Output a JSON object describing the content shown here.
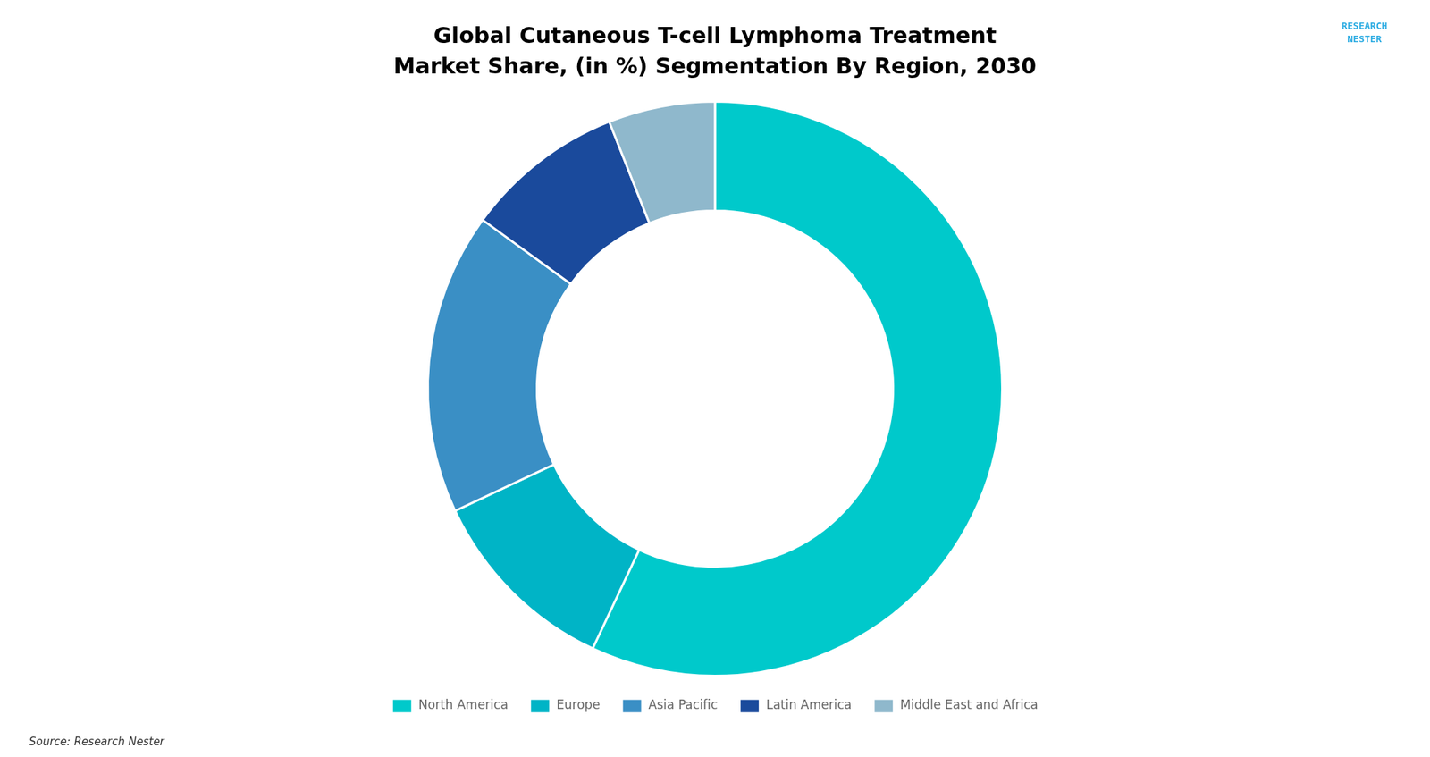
{
  "chart_data": {
    "type": "doughnut",
    "title": "Global Cutaneous T-cell Lymphoma Treatment",
    "subtitle": "Market Share, (in %) Segmentation By Region, 2030",
    "categories": [
      "North America",
      "Europe",
      "Asia Pacific",
      "Latin America",
      "Middle East and Africa"
    ],
    "values": [
      57,
      11,
      17,
      9,
      6
    ],
    "colors": [
      "#00C9CB",
      "#00B4C6",
      "#3A8FC5",
      "#1A4A9C",
      "#8FB8CC"
    ],
    "legend": "bottom",
    "annotations": [
      "Source: Research Nester",
      "RESEARCH\nNESTER"
    ]
  }
}
